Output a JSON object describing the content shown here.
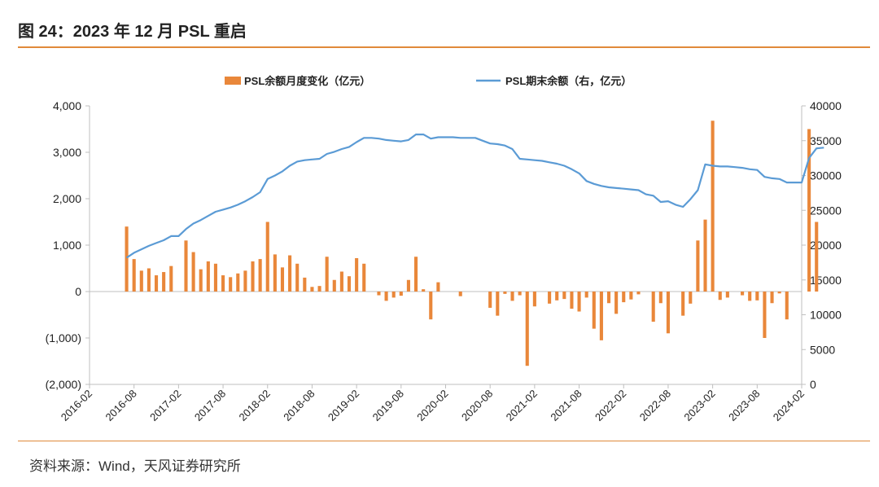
{
  "header": {
    "title": "图 24：2023 年 12 月 PSL 重启"
  },
  "footer": {
    "source": "资料来源：Wind，天风证券研究所"
  },
  "colors": {
    "bar": "#e9873a",
    "line": "#5b9bd5",
    "accent": "#e08a3a",
    "axis": "#bfbfbf"
  },
  "chart_data": {
    "type": "bar+line",
    "title": "",
    "legend_position": "top",
    "grid": false,
    "x_tick_labels": [
      "2016-02",
      "2016-08",
      "2017-02",
      "2017-08",
      "2018-02",
      "2018-08",
      "2019-02",
      "2019-08",
      "2020-02",
      "2020-08",
      "2021-02",
      "2021-08",
      "2022-02",
      "2022-08",
      "2023-02",
      "2023-08",
      "2024-02"
    ],
    "x_start": "2016-02",
    "n_months": 97,
    "y_left": {
      "min": -2000,
      "max": 4000,
      "ticks": [
        -2000,
        -1000,
        0,
        1000,
        2000,
        3000,
        4000
      ],
      "tick_labels": [
        "(2,000)",
        "(1,000)",
        "0",
        "1,000",
        "2,000",
        "3,000",
        "4,000"
      ]
    },
    "y_right": {
      "min": 0,
      "max": 40000,
      "ticks": [
        0,
        5000,
        10000,
        15000,
        20000,
        25000,
        30000,
        35000,
        40000
      ],
      "tick_labels": [
        "0",
        "5000",
        "10000",
        "15000",
        "20000",
        "25000",
        "30000",
        "35000",
        "40000"
      ]
    },
    "series": [
      {
        "name": "PSL余额月度变化（亿元）",
        "type": "bar",
        "axis": "left",
        "start_index": 5,
        "values": [
          1400,
          700,
          450,
          500,
          350,
          420,
          550,
          0,
          1100,
          850,
          480,
          650,
          600,
          350,
          310,
          390,
          450,
          650,
          700,
          1500,
          800,
          520,
          780,
          600,
          300,
          100,
          120,
          750,
          250,
          430,
          330,
          720,
          600,
          0,
          -80,
          -200,
          -130,
          -90,
          250,
          750,
          50,
          -600,
          200,
          0,
          0,
          -100,
          0,
          0,
          0,
          -350,
          -520,
          -50,
          -200,
          -80,
          -1600,
          -320,
          0,
          -260,
          -190,
          -160,
          -370,
          -430,
          -130,
          -800,
          -1050,
          -250,
          -480,
          -230,
          -170,
          -60,
          0,
          -650,
          -250,
          -900,
          0,
          -520,
          -260,
          1100,
          1550,
          3680,
          -180,
          -130,
          0,
          -80,
          -200,
          -190,
          -1000,
          -250,
          -40,
          -600,
          0,
          0,
          3500,
          1500,
          0
        ],
        "color": "#e9873a"
      },
      {
        "name": "PSL期末余额（右，亿元）",
        "type": "line",
        "axis": "right",
        "start_index": 5,
        "values": [
          18200,
          18900,
          19400,
          19900,
          20300,
          20700,
          21300,
          21300,
          22300,
          23100,
          23600,
          24200,
          24800,
          25100,
          25400,
          25800,
          26300,
          26900,
          27600,
          29500,
          30000,
          30600,
          31400,
          32000,
          32200,
          32300,
          32400,
          33100,
          33400,
          33800,
          34100,
          34800,
          35400,
          35400,
          35300,
          35100,
          35000,
          34900,
          35100,
          35900,
          35900,
          35300,
          35500,
          35500,
          35500,
          35400,
          35400,
          35400,
          35000,
          34600,
          34500,
          34300,
          33800,
          32400,
          32300,
          32200,
          32100,
          31900,
          31700,
          31400,
          30900,
          30300,
          29200,
          28800,
          28500,
          28300,
          28200,
          28100,
          28000,
          27900,
          27300,
          27100,
          26200,
          26300,
          25800,
          25500,
          26600,
          27900,
          31600,
          31400,
          31300,
          31300,
          31200,
          31100,
          30900,
          30800,
          29800,
          29600,
          29500,
          29000,
          29000,
          29000,
          32500,
          33900,
          34000
        ],
        "color": "#5b9bd5"
      }
    ]
  }
}
